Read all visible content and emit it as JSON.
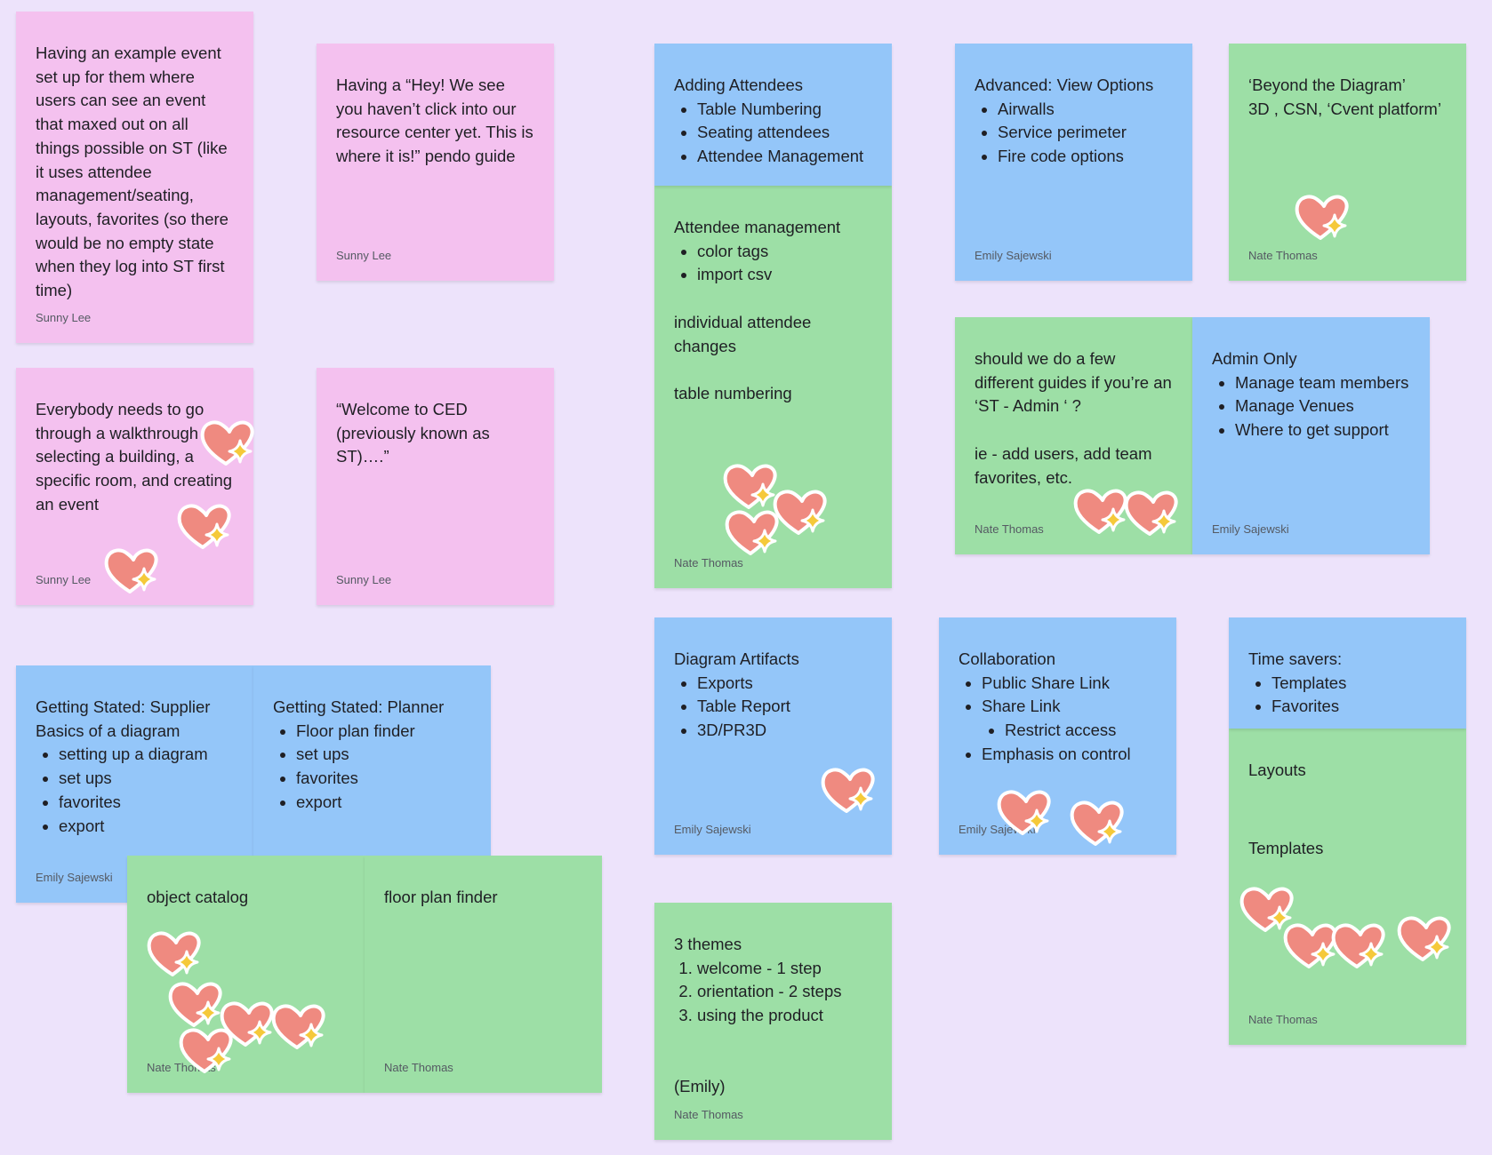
{
  "notes": {
    "n1": {
      "lines": [
        "Having an example event set up for them where users can see an event that maxed out on all things possible on ST (like it uses attendee management/seating, layouts, favorites (so there would be no empty state when they log into ST first time)"
      ],
      "author": "Sunny Lee"
    },
    "n2": {
      "lines": [
        "Having a “Hey! We see you haven’t click into our resource center yet. This is where it is!” pendo guide"
      ],
      "author": "Sunny Lee"
    },
    "n3": {
      "lines": [
        "Everybody needs to go through a walkthrough selecting a building, a specific room, and creating an event"
      ],
      "author": "Sunny Lee"
    },
    "n4": {
      "lines": [
        "“Welcome to CED (previously known as ST)….”"
      ],
      "author": "Sunny Lee"
    },
    "n5": {
      "title": "Adding Attendees",
      "items": [
        "Table Numbering",
        "Seating attendees",
        "Attendee Management"
      ]
    },
    "n6": {
      "title": "Attendee management",
      "items": [
        "color tags",
        "import csv"
      ],
      "para1": "individual attendee changes",
      "para2": "table numbering",
      "author": "Nate Thomas"
    },
    "n7": {
      "title": "Advanced: View Options",
      "items": [
        "Airwalls",
        "Service perimeter",
        "Fire code options"
      ],
      "author": "Emily Sajewski"
    },
    "n8": {
      "line1": "‘Beyond the Diagram’",
      "line2": "3D , CSN, ‘Cvent platform’",
      "author": "Nate Thomas"
    },
    "n9": {
      "para1": "should we do a few different guides if you’re an ‘ST - Admin ‘ ?",
      "para2": "ie - add users, add team favorites, etc.",
      "author": "Nate Thomas"
    },
    "n10": {
      "title": "Admin Only",
      "items": [
        "Manage team members",
        "Manage Venues",
        "Where to get support"
      ],
      "author": "Emily Sajewski"
    },
    "n11": {
      "title1": "Getting Stated: Supplier",
      "title2": "Basics of a diagram",
      "items": [
        "setting up a diagram",
        "set ups",
        "favorites",
        "export"
      ],
      "author": "Emily Sajewski"
    },
    "n12": {
      "title": "Getting Stated: Planner",
      "items": [
        "Floor plan finder",
        "set ups",
        "favorites",
        "export"
      ]
    },
    "n13": {
      "text": "object catalog",
      "author": "Nate Thomas"
    },
    "n14": {
      "text": "floor plan finder",
      "author": "Nate Thomas"
    },
    "n15": {
      "title": "Diagram Artifacts",
      "items": [
        "Exports",
        "Table Report",
        "3D/PR3D"
      ],
      "author": "Emily Sajewski"
    },
    "n16": {
      "title": "Collaboration",
      "items": [
        "Public Share Link",
        "Share Link"
      ],
      "subitems": [
        "Restrict access"
      ],
      "items2": [
        "Emphasis on control"
      ],
      "author": "Emily Sajewski"
    },
    "n17": {
      "title": "Time savers:",
      "items": [
        "Templates",
        "Favorites"
      ]
    },
    "n18": {
      "text1": "Layouts",
      "text2": "Templates",
      "author": "Nate Thomas"
    },
    "n19": {
      "title": "3 themes",
      "items": [
        "welcome - 1 step",
        "orientation - 2 steps",
        "using the product"
      ],
      "footer": "(Emily)",
      "author": "Nate Thomas"
    }
  },
  "colors": {
    "background": "#ede3fb",
    "pink": "#f4c1ef",
    "blue": "#94c6f9",
    "green": "#9ddfa6",
    "heart": "#ef8a80",
    "sparkle": "#f5c93a"
  },
  "reaction_icon": "heart-sparkle-icon"
}
